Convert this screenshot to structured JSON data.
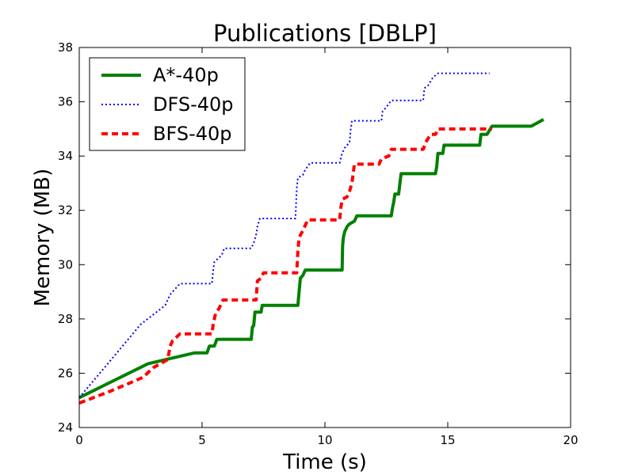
{
  "chart_data": {
    "type": "line",
    "title": "Publications [DBLP]",
    "xlabel": "Time (s)",
    "ylabel": "Memory (MB)",
    "xlim": [
      0,
      20
    ],
    "ylim": [
      24,
      38
    ],
    "xticks": [
      "0",
      "5",
      "10",
      "15",
      "20"
    ],
    "yticks": [
      "24",
      "26",
      "28",
      "30",
      "32",
      "34",
      "36",
      "38"
    ],
    "grid": false,
    "legend": "upper-left",
    "series": [
      {
        "name": "A*-40p",
        "color": "#008000",
        "style": "solid",
        "points": [
          [
            0,
            25.1
          ],
          [
            2.8,
            26.35
          ],
          [
            4.7,
            26.75
          ],
          [
            5.2,
            26.75
          ],
          [
            5.3,
            27.0
          ],
          [
            5.5,
            27.0
          ],
          [
            5.6,
            27.25
          ],
          [
            7.0,
            27.25
          ],
          [
            7.05,
            27.7
          ],
          [
            7.1,
            27.75
          ],
          [
            7.15,
            28.25
          ],
          [
            7.4,
            28.25
          ],
          [
            7.45,
            28.5
          ],
          [
            8.9,
            28.5
          ],
          [
            8.95,
            29.0
          ],
          [
            9.0,
            29.5
          ],
          [
            9.1,
            29.6
          ],
          [
            9.2,
            29.8
          ],
          [
            10.7,
            29.8
          ],
          [
            10.72,
            30.7
          ],
          [
            10.75,
            31.0
          ],
          [
            10.8,
            31.2
          ],
          [
            10.9,
            31.4
          ],
          [
            11.0,
            31.5
          ],
          [
            11.2,
            31.6
          ],
          [
            11.3,
            31.8
          ],
          [
            12.7,
            31.8
          ],
          [
            12.75,
            32.1
          ],
          [
            12.8,
            32.3
          ],
          [
            12.85,
            32.6
          ],
          [
            13.0,
            32.6
          ],
          [
            13.1,
            33.35
          ],
          [
            14.5,
            33.35
          ],
          [
            14.55,
            33.6
          ],
          [
            14.6,
            34.1
          ],
          [
            14.8,
            34.1
          ],
          [
            14.85,
            34.4
          ],
          [
            16.3,
            34.4
          ],
          [
            16.35,
            34.8
          ],
          [
            16.6,
            34.8
          ],
          [
            16.8,
            35.1
          ],
          [
            18.4,
            35.1
          ],
          [
            18.9,
            35.35
          ]
        ]
      },
      {
        "name": "DFS-40p",
        "color": "#0000ff",
        "style": "dotted",
        "points": [
          [
            0,
            25.1
          ],
          [
            1.3,
            26.5
          ],
          [
            2.5,
            27.8
          ],
          [
            3.5,
            28.5
          ],
          [
            3.7,
            28.9
          ],
          [
            3.9,
            29.1
          ],
          [
            4.1,
            29.3
          ],
          [
            5.4,
            29.3
          ],
          [
            5.45,
            29.8
          ],
          [
            5.5,
            30.1
          ],
          [
            5.8,
            30.35
          ],
          [
            5.9,
            30.6
          ],
          [
            7.0,
            30.6
          ],
          [
            7.1,
            30.8
          ],
          [
            7.2,
            31.1
          ],
          [
            7.25,
            31.4
          ],
          [
            7.35,
            31.7
          ],
          [
            8.8,
            31.7
          ],
          [
            8.85,
            32.8
          ],
          [
            8.9,
            33.2
          ],
          [
            9.1,
            33.3
          ],
          [
            9.2,
            33.5
          ],
          [
            9.4,
            33.75
          ],
          [
            10.6,
            33.75
          ],
          [
            10.7,
            34.1
          ],
          [
            10.8,
            34.3
          ],
          [
            11.0,
            34.5
          ],
          [
            11.05,
            35.0
          ],
          [
            11.1,
            35.3
          ],
          [
            12.3,
            35.3
          ],
          [
            12.35,
            35.65
          ],
          [
            12.5,
            35.8
          ],
          [
            12.7,
            36.05
          ],
          [
            14.0,
            36.05
          ],
          [
            14.05,
            36.5
          ],
          [
            14.2,
            36.6
          ],
          [
            14.4,
            36.9
          ],
          [
            14.6,
            37.05
          ],
          [
            16.7,
            37.05
          ]
        ]
      },
      {
        "name": "BFS-40p",
        "color": "#ff0000",
        "style": "dashed",
        "points": [
          [
            0,
            24.9
          ],
          [
            1.3,
            25.35
          ],
          [
            2.6,
            25.85
          ],
          [
            3.0,
            26.2
          ],
          [
            3.6,
            26.5
          ],
          [
            3.7,
            27.0
          ],
          [
            3.8,
            27.2
          ],
          [
            4.1,
            27.45
          ],
          [
            5.4,
            27.45
          ],
          [
            5.45,
            27.8
          ],
          [
            5.55,
            28.2
          ],
          [
            5.7,
            28.4
          ],
          [
            5.85,
            28.7
          ],
          [
            7.2,
            28.7
          ],
          [
            7.25,
            29.4
          ],
          [
            7.4,
            29.5
          ],
          [
            7.5,
            29.7
          ],
          [
            8.85,
            29.7
          ],
          [
            8.9,
            30.5
          ],
          [
            8.95,
            31.0
          ],
          [
            9.1,
            31.25
          ],
          [
            9.3,
            31.65
          ],
          [
            10.6,
            31.65
          ],
          [
            10.65,
            32.1
          ],
          [
            10.7,
            32.4
          ],
          [
            10.9,
            32.5
          ],
          [
            11.0,
            32.7
          ],
          [
            11.1,
            33.0
          ],
          [
            11.2,
            33.7
          ],
          [
            12.2,
            33.7
          ],
          [
            12.3,
            33.9
          ],
          [
            12.6,
            34.0
          ],
          [
            12.7,
            34.25
          ],
          [
            14.0,
            34.25
          ],
          [
            14.1,
            34.5
          ],
          [
            14.3,
            34.8
          ],
          [
            14.5,
            34.8
          ],
          [
            14.6,
            35.0
          ],
          [
            16.8,
            35.0
          ]
        ]
      }
    ]
  }
}
